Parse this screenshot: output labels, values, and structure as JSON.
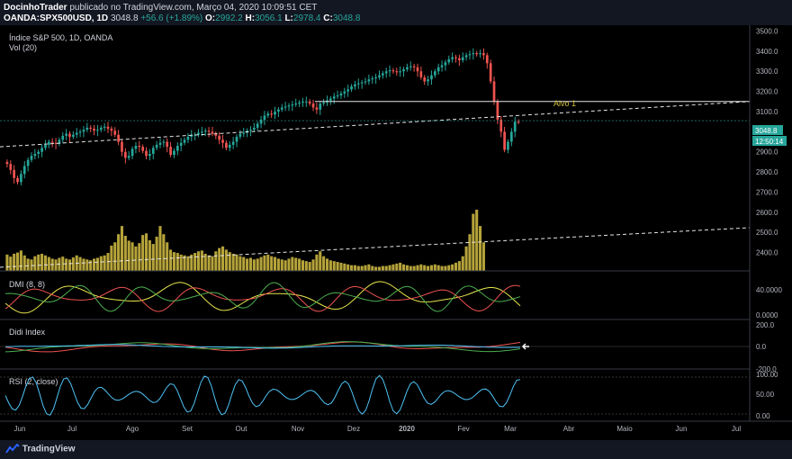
{
  "header": {
    "author": "DocinhoTrader",
    "published": "publicado no TradingView.com, Março 04, 2020 10:09:51 CET",
    "symbol": "OANDA:SPX500USD, 1D",
    "price": "3048.8",
    "change": "+56.6 (+1.89%)",
    "o_label": "O:",
    "o": "2992.2",
    "h_label": "H:",
    "h": "3056.1",
    "l_label": "L:",
    "l": "2978.4",
    "c_label": "C:",
    "c": "3048.8"
  },
  "chart": {
    "title": "Índice S&P 500, 1D, OANDA",
    "vol_label": "Vol (20)",
    "target_label": "Alvo 1",
    "last_price_badge": "3048.8",
    "countdown_badge": "12:50:14",
    "dmi_label": "DMI (8, 8)",
    "didi_label": "Didi Index",
    "rsi_label": "RSI (2, close)",
    "colors": {
      "up": "#26a69a",
      "down": "#ef5350",
      "volume": "#b5a33a",
      "target_line": "#e6e6e6",
      "text": "#d1d4dc"
    }
  },
  "chart_data": [
    {
      "type": "candlestick",
      "title": "Índice S&P 500, 1D, OANDA",
      "ylim": [
        2300,
        3520
      ],
      "yticks": [
        2400,
        2500,
        2600,
        2700,
        2800,
        2900,
        3000,
        3100,
        3200,
        3300,
        3400,
        3500
      ],
      "xticks": [
        "Jun",
        "Jul",
        "Ago",
        "Set",
        "Out",
        "Nov",
        "Dez",
        "2020",
        "Fev",
        "Mar",
        "Abr",
        "Maio",
        "Jun",
        "Jul"
      ],
      "close_series": [
        2840,
        2810,
        2770,
        2750,
        2790,
        2830,
        2860,
        2880,
        2890,
        2900,
        2920,
        2935,
        2950,
        2945,
        2940,
        2960,
        2980,
        2990,
        2975,
        2985,
        2995,
        3000,
        3010,
        3020,
        3015,
        3005,
        3010,
        3020,
        3025,
        3015,
        3005,
        2985,
        2950,
        2900,
        2870,
        2880,
        2915,
        2930,
        2925,
        2905,
        2880,
        2890,
        2920,
        2935,
        2945,
        2950,
        2925,
        2885,
        2905,
        2930,
        2945,
        2960,
        2975,
        2985,
        2985,
        2995,
        3000,
        3005,
        3000,
        2990,
        2980,
        2960,
        2945,
        2920,
        2935,
        2950,
        2975,
        2990,
        2995,
        3005,
        3010,
        3020,
        3040,
        3060,
        3080,
        3090,
        3085,
        3100,
        3110,
        3120,
        3125,
        3130,
        3135,
        3140,
        3145,
        3150,
        3150,
        3140,
        3120,
        3110,
        3140,
        3145,
        3155,
        3165,
        3175,
        3180,
        3190,
        3200,
        3210,
        3225,
        3235,
        3240,
        3245,
        3250,
        3260,
        3265,
        3270,
        3280,
        3290,
        3300,
        3305,
        3300,
        3295,
        3300,
        3310,
        3320,
        3325,
        3320,
        3300,
        3270,
        3250,
        3260,
        3280,
        3300,
        3320,
        3330,
        3345,
        3360,
        3370,
        3365,
        3355,
        3370,
        3380,
        3385,
        3390,
        3385,
        3390,
        3380,
        3340,
        3250,
        3150,
        3060,
        3000,
        2910,
        2950,
        3000,
        3050,
        3048.8
      ],
      "target_level": 3150,
      "target_label": "Alvo 1"
    },
    {
      "type": "bar",
      "title": "Vol (20)",
      "values": [
        40,
        35,
        42,
        45,
        50,
        38,
        30,
        28,
        36,
        40,
        42,
        38,
        34,
        30,
        28,
        32,
        35,
        30,
        28,
        33,
        38,
        34,
        30,
        28,
        26,
        30,
        32,
        36,
        38,
        44,
        62,
        70,
        90,
        110,
        86,
        74,
        70,
        60,
        68,
        88,
        92,
        75,
        66,
        84,
        110,
        90,
        70,
        52,
        46,
        44,
        40,
        38,
        36,
        40,
        44,
        48,
        50,
        42,
        38,
        36,
        48,
        56,
        60,
        52,
        46,
        42,
        40,
        36,
        34,
        30,
        32,
        28,
        30,
        34,
        38,
        40,
        36,
        34,
        30,
        28,
        26,
        30,
        34,
        32,
        30,
        26,
        24,
        22,
        28,
        40,
        48,
        36,
        30,
        26,
        24,
        22,
        20,
        18,
        16,
        14,
        14,
        12,
        12,
        14,
        16,
        12,
        10,
        10,
        12,
        12,
        14,
        16,
        18,
        20,
        16,
        14,
        12,
        12,
        14,
        16,
        14,
        12,
        14,
        16,
        14,
        12,
        12,
        14,
        16,
        20,
        24,
        36,
        60,
        90,
        140,
        150,
        110,
        70
      ]
    },
    {
      "type": "line",
      "title": "DMI (8, 8)",
      "yticks": [
        0,
        40
      ]
    },
    {
      "type": "line",
      "title": "Didi Index",
      "yticks": [
        -200,
        0,
        200
      ]
    },
    {
      "type": "line",
      "title": "RSI (2, close)",
      "yticks": [
        0,
        50,
        100
      ]
    }
  ],
  "footer": {
    "brand": "TradingView"
  }
}
